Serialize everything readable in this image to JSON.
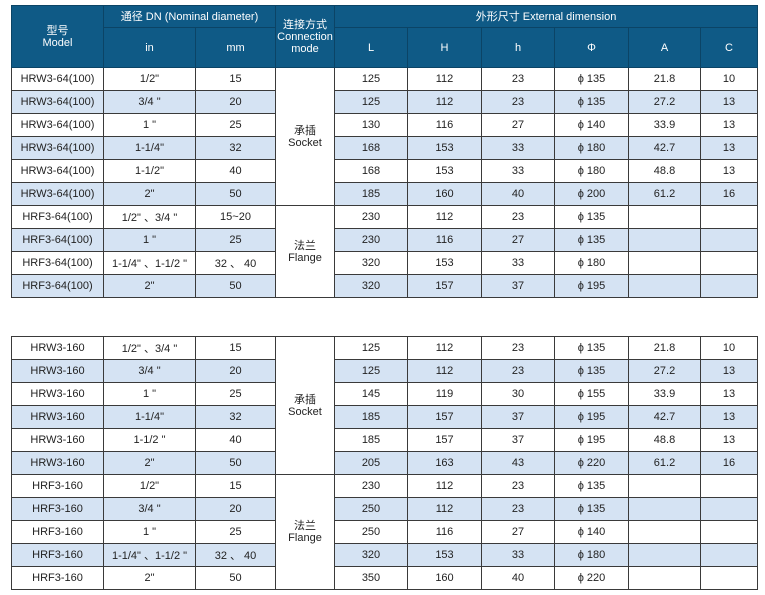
{
  "header": {
    "model": "型号\nModel",
    "dn": "通径 DN  (Nominal diameter)",
    "in": "in",
    "mm": "mm",
    "connection": "连接方式\nConnection\nmode",
    "external": "外形尺寸  External dimension",
    "cols": [
      "L",
      "H",
      "h",
      "Φ",
      "A",
      "C"
    ]
  },
  "tables": [
    {
      "groups": [
        {
          "connection": "承插\nSocket",
          "rows": [
            [
              "HRW3-64(100)",
              "1/2\"",
              "15",
              "125",
              "112",
              "23",
              "ϕ  135",
              "21.8",
              "10"
            ],
            [
              "HRW3-64(100)",
              "3/4 \"",
              "20",
              "125",
              "112",
              "23",
              "ϕ  135",
              "27.2",
              "13"
            ],
            [
              "HRW3-64(100)",
              "1 \"",
              "25",
              "130",
              "116",
              "27",
              "ϕ  140",
              "33.9",
              "13"
            ],
            [
              "HRW3-64(100)",
              "1-1/4\"",
              "32",
              "168",
              "153",
              "33",
              "ϕ  180",
              "42.7",
              "13"
            ],
            [
              "HRW3-64(100)",
              "1-1/2\"",
              "40",
              "168",
              "153",
              "33",
              "ϕ  180",
              "48.8",
              "13"
            ],
            [
              "HRW3-64(100)",
              "2\"",
              "50",
              "185",
              "160",
              "40",
              "ϕ  200",
              "61.2",
              "16"
            ]
          ]
        },
        {
          "connection": "法兰\nFlange",
          "rows": [
            [
              "HRF3-64(100)",
              "1/2\"  、3/4 \"",
              "15~20",
              "230",
              "112",
              "23",
              "ϕ  135",
              "",
              ""
            ],
            [
              "HRF3-64(100)",
              "1 \"",
              "25",
              "230",
              "116",
              "27",
              "ϕ  135",
              "",
              ""
            ],
            [
              "HRF3-64(100)",
              "1-1/4\" 、1-1/2 \"",
              "32  、  40",
              "320",
              "153",
              "33",
              "ϕ  180",
              "",
              ""
            ],
            [
              "HRF3-64(100)",
              "2\"",
              "50",
              "320",
              "157",
              "37",
              "ϕ  195",
              "",
              ""
            ]
          ]
        }
      ]
    },
    {
      "groups": [
        {
          "connection": "承插\nSocket",
          "rows": [
            [
              "HRW3-160",
              "1/2\" 、3/4 \"",
              "15",
              "125",
              "112",
              "23",
              "ϕ  135",
              "21.8",
              "10"
            ],
            [
              "HRW3-160",
              "3/4 \"",
              "20",
              "125",
              "112",
              "23",
              "ϕ  135",
              "27.2",
              "13"
            ],
            [
              "HRW3-160",
              "1 \"",
              "25",
              "145",
              "119",
              "30",
              "ϕ  155",
              "33.9",
              "13"
            ],
            [
              "HRW3-160",
              "1-1/4\"",
              "32",
              "185",
              "157",
              "37",
              "ϕ  195",
              "42.7",
              "13"
            ],
            [
              "HRW3-160",
              "1-1/2 \"",
              "40",
              "185",
              "157",
              "37",
              "ϕ  195",
              "48.8",
              "13"
            ],
            [
              "HRW3-160",
              "2\"",
              "50",
              "205",
              "163",
              "43",
              "ϕ  220",
              "61.2",
              "16"
            ]
          ]
        },
        {
          "connection": "法兰\nFlange",
          "rows": [
            [
              "HRF3-160",
              "1/2\"",
              "15",
              "230",
              "112",
              "23",
              "ϕ  135",
              "",
              ""
            ],
            [
              "HRF3-160",
              "3/4 \"",
              "20",
              "250",
              "112",
              "23",
              "ϕ  135",
              "",
              ""
            ],
            [
              "HRF3-160",
              "1 \"",
              "25",
              "250",
              "116",
              "27",
              "ϕ  140",
              "",
              ""
            ],
            [
              "HRF3-160",
              "1-1/4\" 、1-1/2 \"",
              "32  、  40",
              "320",
              "153",
              "33",
              "ϕ  180",
              "",
              ""
            ],
            [
              "HRF3-160",
              "2\"",
              "50",
              "350",
              "160",
              "40",
              "ϕ  220",
              "",
              ""
            ]
          ]
        }
      ]
    }
  ],
  "colors": {
    "header_bg": "#0f5a86",
    "stripe": "#d5e3f3"
  }
}
